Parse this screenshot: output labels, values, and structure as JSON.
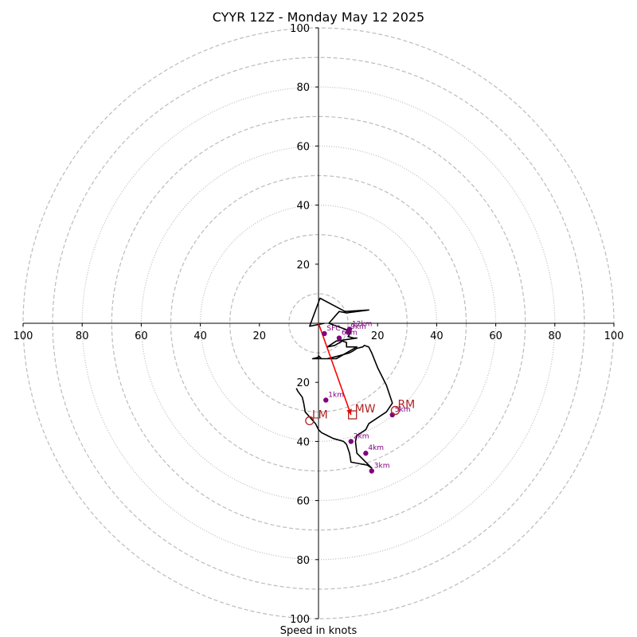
{
  "chart_data": {
    "type": "hodograph",
    "title": "CYYR 12Z - Monday May 12 2025",
    "xlabel": "Speed in knots",
    "axis_range": [
      -100,
      100
    ],
    "axis_ticks": {
      "left": [
        "100",
        "80",
        "60",
        "40",
        "20"
      ],
      "right": [
        "20",
        "40",
        "60",
        "80",
        "100"
      ],
      "top": [
        "100",
        "80",
        "60",
        "40",
        "20"
      ],
      "bottom": [
        "20",
        "40",
        "60",
        "80",
        "100"
      ]
    },
    "grid": {
      "dashed_rings": [
        10,
        30,
        50,
        70,
        90
      ],
      "dotted_rings": [
        40,
        60,
        80,
        100
      ]
    },
    "colors": {
      "trace": "#000000",
      "points": "#800080",
      "motion": "#b22222",
      "shear_vector": "#ff0000",
      "grid": "#bbbbbb"
    },
    "series": [
      {
        "u": [
          2,
          -3,
          0.5,
          9,
          17,
          9.5,
          7,
          3.5,
          9,
          11,
          10,
          12,
          13,
          6,
          3,
          5.5,
          8,
          9.5,
          9.5,
          13,
          6,
          1,
          0,
          0,
          -2,
          -2,
          -1.5,
          3,
          7,
          10.5,
          11.5,
          13,
          15,
          15.5,
          17,
          18,
          20,
          23,
          25,
          23,
          20,
          17,
          16,
          13,
          12.5,
          13,
          16,
          18,
          18,
          16.5,
          11,
          10.5,
          9.5,
          8.5,
          5,
          3,
          1,
          0,
          -1,
          -4.5,
          -5,
          -5.5,
          -7,
          -7.5,
          -7.5,
          -7.5
        ],
        "v": [
          0,
          -1,
          8.5,
          4,
          4.5,
          3.5,
          4,
          0,
          -2,
          -3,
          -4.5,
          -5,
          -5,
          -6,
          -8,
          -7.5,
          -6,
          -6.5,
          -8,
          -8,
          -12,
          -12,
          -11,
          -11.5,
          -12,
          -12,
          -12,
          -12,
          -11,
          -10,
          -9.5,
          -8.5,
          -8,
          -7.5,
          -8,
          -10,
          -15,
          -21,
          -27,
          -30,
          -32,
          -34,
          -36,
          -38,
          -40,
          -44,
          -47,
          -49,
          -49,
          -48,
          -47,
          -44,
          -41,
          -40,
          -39,
          -38,
          -37,
          -36,
          -34,
          -30,
          -27,
          -25,
          -23,
          -22,
          -22,
          -22
        ]
      }
    ],
    "height_markers": [
      {
        "label": "SFC",
        "u": 2,
        "v": -3.5
      },
      {
        "label": "1km",
        "u": 2.5,
        "v": -26
      },
      {
        "label": "2km",
        "u": 11,
        "v": -40
      },
      {
        "label": "3km",
        "u": 18,
        "v": -50
      },
      {
        "label": "4km",
        "u": 16,
        "v": -44
      },
      {
        "label": "5km",
        "u": 25,
        "v": -31
      },
      {
        "label": "6km",
        "u": 7,
        "v": -5
      },
      {
        "label": "9km",
        "u": 10,
        "v": -3
      },
      {
        "label": "12km",
        "u": 10.5,
        "v": -2
      }
    ],
    "storm_motions": [
      {
        "label": "RM",
        "u": 26,
        "v": -29.5,
        "marker": "circle"
      },
      {
        "label": "LM",
        "u": -3,
        "v": -33,
        "marker": "circle"
      },
      {
        "label": "MW",
        "u": 11.5,
        "v": -31,
        "marker": "square"
      }
    ],
    "shear_vector": {
      "from": [
        0,
        0
      ],
      "to": [
        11,
        -31
      ]
    }
  }
}
